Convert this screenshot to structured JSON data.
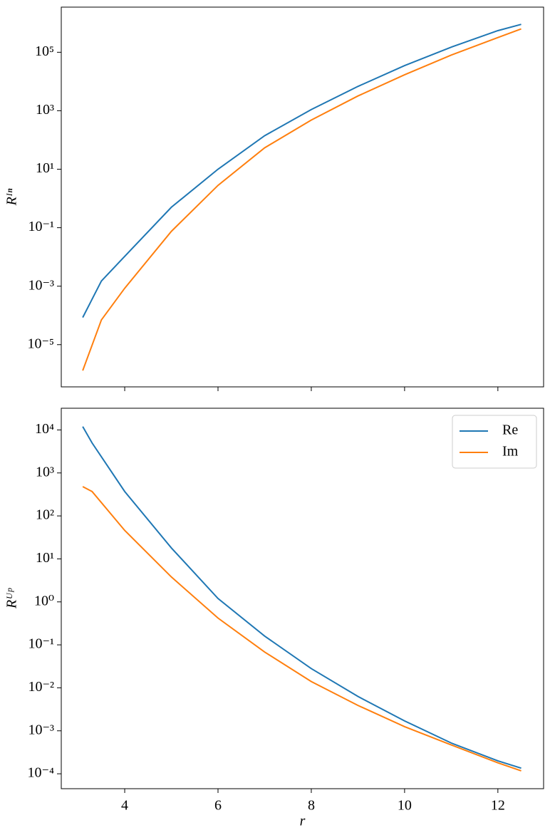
{
  "chart_data": [
    {
      "type": "line",
      "ylabel": "Rᴵⁿ",
      "log_y": true,
      "x": [
        3.1,
        3.5,
        4,
        5,
        6,
        7,
        8,
        9,
        10,
        11,
        12,
        12.5
      ],
      "series": [
        {
          "color": "#1f77b4",
          "values": [
            8.5e-05,
            0.0015,
            0.0105,
            0.5,
            10,
            140,
            1100,
            6800,
            35000,
            150000,
            550000,
            900000
          ]
        },
        {
          "color": "#ff7f0e",
          "values": [
            1.3e-06,
            7e-05,
            0.00085,
            0.075,
            2.8,
            54,
            480,
            3200,
            17000,
            80000,
            320000,
            630000
          ]
        }
      ],
      "xlim": [
        2.64,
        12.98
      ],
      "ylim": [
        3.6e-07,
        3500000
      ],
      "yticks": [
        {
          "value": 1e-05,
          "label": "10⁻⁵"
        },
        {
          "value": 0.001,
          "label": "10⁻³"
        },
        {
          "value": 0.1,
          "label": "10⁻¹"
        },
        {
          "value": 10,
          "label": "10¹"
        },
        {
          "value": 1000,
          "label": "10³"
        },
        {
          "value": 100000,
          "label": "10⁵"
        }
      ]
    },
    {
      "type": "line",
      "ylabel": "Rᵁᵖ",
      "xlabel": "r",
      "log_y": true,
      "legend": "upper right",
      "x": [
        3.1,
        3.3,
        4,
        5,
        6,
        7,
        8,
        9,
        10,
        11,
        12,
        12.5
      ],
      "series": [
        {
          "name": "Re",
          "color": "#1f77b4",
          "values": [
            12000,
            5000,
            370,
            18,
            1.2,
            0.16,
            0.028,
            0.0063,
            0.0017,
            0.00052,
            0.0002,
            0.000135
          ]
        },
        {
          "name": "Im",
          "color": "#ff7f0e",
          "values": [
            480,
            370,
            46,
            3.8,
            0.42,
            0.068,
            0.014,
            0.0039,
            0.00125,
            0.00047,
            0.00018,
            0.000117
          ]
        }
      ],
      "xlim": [
        2.64,
        12.98
      ],
      "ylim": [
        4.5e-05,
        32000
      ],
      "xticks": [
        4,
        6,
        8,
        10,
        12
      ],
      "yticks": [
        {
          "value": 0.0001,
          "label": "10⁻⁴"
        },
        {
          "value": 0.001,
          "label": "10⁻³"
        },
        {
          "value": 0.01,
          "label": "10⁻²"
        },
        {
          "value": 0.1,
          "label": "10⁻¹"
        },
        {
          "value": 1,
          "label": "10⁰"
        },
        {
          "value": 10,
          "label": "10¹"
        },
        {
          "value": 100,
          "label": "10²"
        },
        {
          "value": 1000,
          "label": "10³"
        },
        {
          "value": 10000,
          "label": "10⁴"
        }
      ]
    }
  ]
}
